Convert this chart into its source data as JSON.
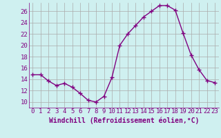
{
  "x": [
    0,
    1,
    2,
    3,
    4,
    5,
    6,
    7,
    8,
    9,
    10,
    11,
    12,
    13,
    14,
    15,
    16,
    17,
    18,
    19,
    20,
    21,
    22,
    23
  ],
  "y": [
    14.8,
    14.8,
    13.7,
    12.9,
    13.3,
    12.6,
    11.5,
    10.3,
    10.0,
    11.0,
    14.3,
    20.0,
    22.0,
    23.5,
    25.0,
    26.0,
    27.0,
    27.0,
    26.2,
    22.1,
    18.3,
    15.7,
    13.8,
    13.4
  ],
  "line_color": "#800080",
  "marker": "+",
  "marker_size": 4,
  "bg_color": "#cff0f0",
  "grid_color": "#aaaaaa",
  "xlabel": "Windchill (Refroidissement éolien,°C)",
  "ylim": [
    9,
    27.5
  ],
  "xlim": [
    -0.5,
    23.5
  ],
  "yticks": [
    10,
    12,
    14,
    16,
    18,
    20,
    22,
    24,
    26
  ],
  "xticks": [
    0,
    1,
    2,
    3,
    4,
    5,
    6,
    7,
    8,
    9,
    10,
    11,
    12,
    13,
    14,
    15,
    16,
    17,
    18,
    19,
    20,
    21,
    22,
    23
  ],
  "xlabel_fontsize": 7,
  "tick_fontsize": 6.5,
  "line_width": 1.0
}
